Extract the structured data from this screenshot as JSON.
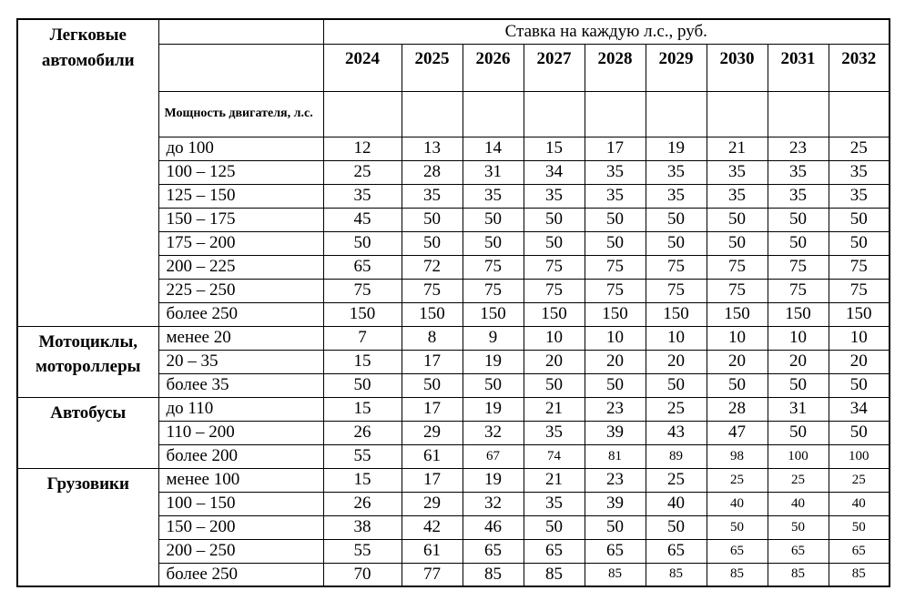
{
  "table": {
    "header": {
      "rate_title": "Ставка на каждую л.с., руб.",
      "power_label": "Мощность двигателя, л.с.",
      "years": [
        "2024",
        "2025",
        "2026",
        "2027",
        "2028",
        "2029",
        "2030",
        "2031",
        "2032"
      ]
    },
    "sections": [
      {
        "category": "Легковые автомобили",
        "rows": [
          {
            "range": "до 100",
            "values": [
              12,
              13,
              14,
              15,
              17,
              19,
              21,
              23,
              25
            ]
          },
          {
            "range": "100 – 125",
            "values": [
              25,
              28,
              31,
              34,
              35,
              35,
              35,
              35,
              35
            ]
          },
          {
            "range": "125 – 150",
            "values": [
              35,
              35,
              35,
              35,
              35,
              35,
              35,
              35,
              35
            ]
          },
          {
            "range": "150 – 175",
            "values": [
              45,
              50,
              50,
              50,
              50,
              50,
              50,
              50,
              50
            ]
          },
          {
            "range": "175 – 200",
            "values": [
              50,
              50,
              50,
              50,
              50,
              50,
              50,
              50,
              50
            ]
          },
          {
            "range": "200 – 225",
            "values": [
              65,
              72,
              75,
              75,
              75,
              75,
              75,
              75,
              75
            ]
          },
          {
            "range": "225 – 250",
            "values": [
              75,
              75,
              75,
              75,
              75,
              75,
              75,
              75,
              75
            ]
          },
          {
            "range": "более 250",
            "values": [
              150,
              150,
              150,
              150,
              150,
              150,
              150,
              150,
              150
            ]
          }
        ]
      },
      {
        "category": "Мотоциклы, мотороллеры",
        "rows": [
          {
            "range": "менее 20",
            "values": [
              7,
              8,
              9,
              10,
              10,
              10,
              10,
              10,
              10
            ]
          },
          {
            "range": "20 – 35",
            "values": [
              15,
              17,
              19,
              20,
              20,
              20,
              20,
              20,
              20
            ]
          },
          {
            "range": "более 35",
            "values": [
              50,
              50,
              50,
              50,
              50,
              50,
              50,
              50,
              50
            ]
          }
        ]
      },
      {
        "category": "Автобусы",
        "rows": [
          {
            "range": "до 110",
            "values": [
              15,
              17,
              19,
              21,
              23,
              25,
              28,
              31,
              34
            ]
          },
          {
            "range": "110 – 200",
            "values": [
              26,
              29,
              32,
              35,
              39,
              43,
              47,
              50,
              50
            ]
          },
          {
            "range": "более 200",
            "values": [
              55,
              61,
              67,
              74,
              81,
              89,
              98,
              100,
              100
            ],
            "small_from": 2
          }
        ]
      },
      {
        "category": "Грузовики",
        "rows": [
          {
            "range": "менее 100",
            "values": [
              15,
              17,
              19,
              21,
              23,
              25,
              25,
              25,
              25
            ],
            "small_from": 6
          },
          {
            "range": "100 – 150",
            "values": [
              26,
              29,
              32,
              35,
              39,
              40,
              40,
              40,
              40
            ],
            "small_from": 6
          },
          {
            "range": "150 – 200",
            "values": [
              38,
              42,
              46,
              50,
              50,
              50,
              50,
              50,
              50
            ],
            "small_from": 6
          },
          {
            "range": "200 – 250",
            "values": [
              55,
              61,
              65,
              65,
              65,
              65,
              65,
              65,
              65
            ],
            "small_from": 6
          },
          {
            "range": "более 250",
            "values": [
              70,
              77,
              85,
              85,
              85,
              85,
              85,
              85,
              85
            ],
            "small_from": 4
          }
        ]
      }
    ]
  },
  "colors": {
    "text": "#000000",
    "border": "#000000",
    "background": "#ffffff"
  }
}
